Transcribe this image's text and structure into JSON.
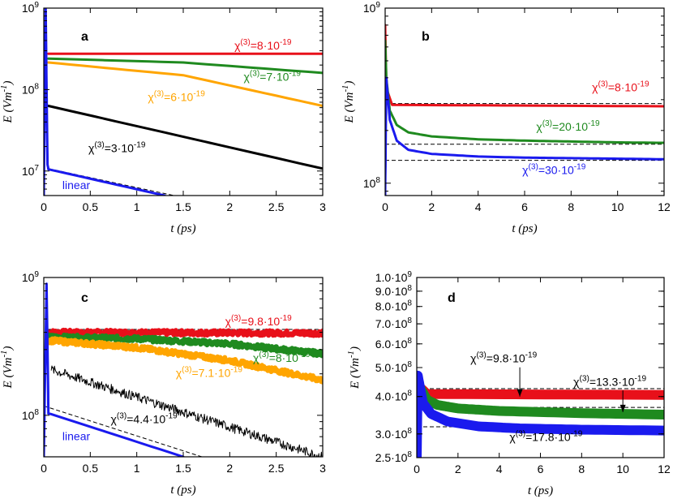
{
  "chart_data": [
    {
      "type": "line",
      "panel_label": "a",
      "scale": "log",
      "xlabel": "t (ps)",
      "ylabel": "E (Vm-1)",
      "xlim": [
        0,
        3
      ],
      "ylim": [
        5000000,
        1000000000
      ],
      "x_ticks": [
        0,
        0.5,
        1,
        1.5,
        2,
        2.5,
        3
      ],
      "x_tick_labels": [
        "0",
        "0.5",
        "1",
        "1.5",
        "2",
        "2.5",
        "3"
      ],
      "y_ticks": [
        10000000,
        100000000,
        1000000000
      ],
      "y_tick_labels": [
        "10^7",
        "10^8",
        "10^9"
      ],
      "series": [
        {
          "name": "χ(3)=8·10-19",
          "color": "#e8101a",
          "width": 3,
          "x": [
            0.05,
            3
          ],
          "values": [
            275000000,
            275000000
          ]
        },
        {
          "name": "χ(3)=7·10-19",
          "color": "#1f8a1f",
          "width": 3,
          "x": [
            0.05,
            1.5,
            3
          ],
          "values": [
            240000000,
            215000000,
            160000000
          ]
        },
        {
          "name": "χ(3)=6·10-19",
          "color": "#ffa500",
          "width": 3,
          "x": [
            0.05,
            1.5,
            3
          ],
          "values": [
            215000000,
            150000000,
            63000000
          ]
        },
        {
          "name": "χ(3)=3·10-19",
          "color": "#000000",
          "width": 3,
          "x": [
            0.05,
            3
          ],
          "values": [
            63000000,
            10700000
          ]
        },
        {
          "name": "linear",
          "color": "#1a1aee",
          "width": 3,
          "x": [
            0.0,
            0.02,
            0.04,
            0.05,
            1.3
          ],
          "values": [
            5000000,
            1000000000,
            12000000,
            10500000,
            5000000
          ]
        }
      ],
      "references": [
        {
          "x": [
            0.05,
            3
          ],
          "values": [
            280000000,
            280000000
          ]
        },
        {
          "x": [
            0.05,
            1.4
          ],
          "values": [
            10700000,
            5000000
          ]
        }
      ],
      "annotations": [
        {
          "text": "χ(3)=8·10-19",
          "color": "#e8101a",
          "x": 2.05,
          "y": 310000000
        },
        {
          "text": "χ(3)=7·10-19",
          "color": "#1f8a1f",
          "x": 2.15,
          "y": 128000000
        },
        {
          "text": "χ(3)=6·10-19",
          "color": "#ffa500",
          "x": 1.12,
          "y": 72000000
        },
        {
          "text": "χ(3)=3·10-19",
          "color": "#000000",
          "x": 0.48,
          "y": 17000000
        },
        {
          "text": "linear",
          "color": "#1a1aee",
          "x": 0.2,
          "y": 6000000
        }
      ]
    },
    {
      "type": "line",
      "panel_label": "b",
      "scale": "log",
      "xlabel": "t (ps)",
      "ylabel": "E (Vm-1)",
      "xlim": [
        0,
        12
      ],
      "ylim": [
        85000000,
        1000000000
      ],
      "x_ticks": [
        0,
        2,
        4,
        6,
        8,
        10,
        12
      ],
      "x_tick_labels": [
        "0",
        "2",
        "4",
        "6",
        "8",
        "10",
        "12"
      ],
      "y_ticks": [
        100000000,
        1000000000
      ],
      "y_tick_labels": [
        "10^8",
        "10^9"
      ],
      "series": [
        {
          "name": "χ(3)=8·10-19",
          "color": "#e8101a",
          "width": 3,
          "x": [
            0.0,
            0.05,
            0.3,
            12
          ],
          "values": [
            800000000,
            350000000,
            280000000,
            275000000
          ]
        },
        {
          "name": "χ(3)=20·10-19",
          "color": "#1f8a1f",
          "width": 3,
          "x": [
            0.0,
            0.05,
            0.2,
            0.5,
            1,
            2,
            4,
            6,
            8,
            10,
            12
          ],
          "values": [
            650000000,
            400000000,
            260000000,
            215000000,
            195000000,
            185000000,
            178000000,
            175000000,
            173000000,
            171000000,
            170000000
          ]
        },
        {
          "name": "χ(3)=30·10-19",
          "color": "#1a1aee",
          "width": 3,
          "x": [
            0.0,
            0.05,
            0.2,
            0.5,
            1,
            2,
            4,
            6,
            8,
            10,
            12
          ],
          "values": [
            85000000,
            400000000,
            230000000,
            175000000,
            155000000,
            147000000,
            142000000,
            140000000,
            139000000,
            138000000,
            137000000
          ]
        }
      ],
      "references": [
        {
          "x": [
            0,
            12
          ],
          "values": [
            285000000,
            285000000
          ]
        },
        {
          "x": [
            0,
            12
          ],
          "values": [
            167000000,
            167000000
          ]
        },
        {
          "x": [
            0,
            12
          ],
          "values": [
            135000000,
            135000000
          ]
        }
      ],
      "annotations": [
        {
          "text": "χ(3)=8·10-19",
          "color": "#e8101a",
          "x": 8.9,
          "y": 335000000
        },
        {
          "text": "χ(3)=20·10-19",
          "color": "#1f8a1f",
          "x": 6.5,
          "y": 200000000
        },
        {
          "text": "χ(3)=30·10-19",
          "color": "#1a1aee",
          "x": 5.9,
          "y": 113000000
        }
      ]
    },
    {
      "type": "line",
      "panel_label": "c",
      "scale": "log",
      "xlabel": "t (ps)",
      "ylabel": "E (Vm-1)",
      "xlim": [
        0,
        3
      ],
      "ylim": [
        50000000,
        1000000000
      ],
      "x_ticks": [
        0,
        0.5,
        1,
        1.5,
        2,
        2.5,
        3
      ],
      "x_tick_labels": [
        "0",
        "0.5",
        "1",
        "1.5",
        "2",
        "2.5",
        "3"
      ],
      "y_ticks": [
        100000000,
        1000000000
      ],
      "y_tick_labels": [
        "10^8",
        "10^9"
      ],
      "series": [
        {
          "name": "χ(3)=9.8·10-19",
          "color": "#e8101a",
          "width": 6,
          "noise": 0.04,
          "x": [
            0.05,
            3
          ],
          "values": [
            400000000,
            395000000
          ]
        },
        {
          "name": "χ(3)=8·10-19",
          "color": "#1f8a1f",
          "width": 6,
          "noise": 0.04,
          "x": [
            0.05,
            1,
            2,
            3
          ],
          "values": [
            370000000,
            360000000,
            330000000,
            280000000
          ]
        },
        {
          "name": "χ(3)=7.1·10-19",
          "color": "#ffa500",
          "width": 6,
          "noise": 0.04,
          "x": [
            0.05,
            1,
            2,
            3
          ],
          "values": [
            350000000,
            310000000,
            250000000,
            180000000
          ]
        },
        {
          "name": "χ(3)=4.4·10-19",
          "color": "#000000",
          "width": 1,
          "noise": 0.08,
          "x": [
            0.08,
            3
          ],
          "values": [
            215000000,
            50000000
          ]
        },
        {
          "name": "linear",
          "color": "#1a1aee",
          "width": 3,
          "x": [
            0.0,
            0.03,
            0.05,
            0.08,
            1.5
          ],
          "values": [
            50000000,
            900000000,
            103000000,
            102000000,
            50000000
          ]
        }
      ],
      "references": [
        {
          "x": [
            0.05,
            3
          ],
          "values": [
            420000000,
            420000000
          ]
        },
        {
          "x": [
            0.0,
            1.7
          ],
          "values": [
            117000000,
            50000000
          ]
        }
      ],
      "annotations": [
        {
          "text": "χ(3)=9.8·10-19",
          "color": "#e8101a",
          "x": 1.95,
          "y": 450000000
        },
        {
          "text": "χ(3)=8·10-19",
          "color": "#1f8a1f",
          "x": 2.25,
          "y": 245000000
        },
        {
          "text": "χ(3)=7.1·10-19",
          "color": "#ffa500",
          "x": 1.42,
          "y": 190000000
        },
        {
          "text": "χ(3)=4.4·10-19",
          "color": "#000000",
          "x": 0.72,
          "y": 88000000
        },
        {
          "text": "linear",
          "color": "#1a1aee",
          "x": 0.2,
          "y": 66000000
        }
      ]
    },
    {
      "type": "line",
      "panel_label": "d",
      "scale": "log",
      "xlabel": "t (ps)",
      "ylabel": "E (Vm-1)",
      "xlim": [
        0,
        12
      ],
      "ylim": [
        250000000,
        1000000000
      ],
      "x_ticks": [
        0,
        2,
        4,
        6,
        8,
        10,
        12
      ],
      "x_tick_labels": [
        "0",
        "2",
        "4",
        "6",
        "8",
        "10",
        "12"
      ],
      "y_ticks": [
        250000000,
        300000000,
        400000000,
        500000000,
        600000000,
        700000000,
        800000000,
        900000000,
        1000000000
      ],
      "y_tick_labels": [
        "2.5·10^8",
        "3.0·10^8",
        "4.0·10^8",
        "5.0·10^8",
        "6.0·10^8",
        "7.0·10^8",
        "8.0·10^8",
        "9.0·10^8",
        "1.0·10^9"
      ],
      "series": [
        {
          "name": "χ(3)=9.8·10-19",
          "color": "#e8101a",
          "width": 12,
          "x": [
            0.15,
            0.5,
            12
          ],
          "values": [
            430000000,
            408000000,
            405000000
          ]
        },
        {
          "name": "χ(3)=13.3·10-19",
          "color": "#1f8a1f",
          "width": 12,
          "x": [
            0.15,
            0.5,
            1,
            2,
            4,
            8,
            12
          ],
          "values": [
            430000000,
            390000000,
            375000000,
            365000000,
            358000000,
            352000000,
            348000000
          ]
        },
        {
          "name": "χ(3)=17.8·10-19",
          "color": "#1a1aee",
          "width": 12,
          "x": [
            0.0,
            0.05,
            0.3,
            0.7,
            1.5,
            3,
            5,
            8,
            12
          ],
          "values": [
            250000000,
            470000000,
            380000000,
            350000000,
            330000000,
            318000000,
            313000000,
            310000000,
            308000000
          ]
        }
      ],
      "references": [
        {
          "x": [
            0,
            12
          ],
          "values": [
            425000000,
            425000000
          ]
        },
        {
          "x": [
            0,
            12
          ],
          "values": [
            368000000,
            368000000
          ]
        },
        {
          "x": [
            0,
            12
          ],
          "values": [
            317000000,
            317000000
          ]
        }
      ],
      "annotations": [
        {
          "text": "χ(3)=9.8·10-19",
          "color": "#000000",
          "x": 2.6,
          "y": 520000000,
          "arrow_to": [
            5.0,
            400000000
          ]
        },
        {
          "text": "χ(3)=13.3·10-19",
          "color": "#000000",
          "x": 7.6,
          "y": 435000000,
          "arrow_to": [
            10.0,
            355000000
          ]
        },
        {
          "text": "χ(3)=17.8·10-19",
          "color": "#000000",
          "x": 4.5,
          "y": 284000000
        }
      ]
    }
  ]
}
